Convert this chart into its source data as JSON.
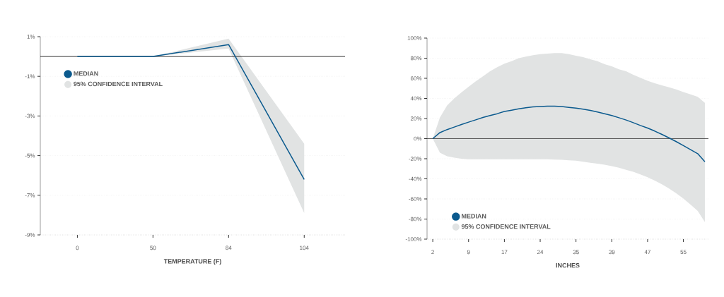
{
  "chart_data": [
    {
      "type": "line",
      "xlabel": "TEMPERATURE (F)",
      "categories": [
        "0",
        "50",
        "84",
        "104"
      ],
      "series": [
        {
          "name": "MEDIAN",
          "color": "#0b5a8e",
          "values": [
            0,
            0,
            0.6,
            -6.2
          ]
        },
        {
          "name": "95% CONFIDENCE INTERVAL",
          "color": "#e1e3e3",
          "values": [
            null,
            null,
            null,
            null
          ],
          "lower": [
            0,
            0,
            0.4,
            -7.9
          ],
          "upper": [
            0,
            0,
            0.9,
            -4.4
          ]
        }
      ],
      "ylim": [
        -9,
        1
      ],
      "yticks": [
        {
          "value": 1,
          "label": "1%"
        },
        {
          "value": -1,
          "label": "-1%"
        },
        {
          "value": -3,
          "label": "-3%"
        },
        {
          "value": -5,
          "label": "-5%"
        },
        {
          "value": -7,
          "label": "-7%"
        },
        {
          "value": -9,
          "label": "-9%"
        }
      ],
      "grid": "y",
      "legend": "top left",
      "ref_lines": [
        {
          "axis": "y",
          "value": 0,
          "color": "#000000"
        }
      ]
    },
    {
      "type": "line",
      "xlabel": "INCHES",
      "categories": [
        "2",
        null,
        null,
        null,
        null,
        "9",
        null,
        null,
        null,
        null,
        "17",
        null,
        null,
        null,
        null,
        "24",
        null,
        null,
        null,
        null,
        "35",
        null,
        null,
        null,
        null,
        "39",
        null,
        null,
        null,
        null,
        "47",
        null,
        null,
        null,
        null,
        "55",
        null,
        null,
        null
      ],
      "series": [
        {
          "name": "MEDIAN",
          "color": "#0b5a8e",
          "values": [
            0,
            6,
            9,
            11.5,
            14,
            16.4,
            18.7,
            21,
            23,
            24.8,
            27,
            28.3,
            29.7,
            30.7,
            31.6,
            32,
            32.3,
            32.3,
            31.9,
            31.1,
            30.4,
            29.3,
            28.1,
            26.5,
            24.8,
            23,
            20.8,
            18.5,
            15.9,
            13.1,
            10.5,
            7.5,
            4.2,
            0.7,
            -3,
            -7,
            -11,
            -15,
            -23
          ]
        },
        {
          "name": "95% CONFIDENCE INTERVAL",
          "color": "#e1e3e3",
          "values": [
            null,
            null,
            null,
            null,
            null,
            null,
            null,
            null,
            null,
            null,
            null,
            null,
            null,
            null,
            null,
            null,
            null,
            null,
            null,
            null,
            null,
            null,
            null,
            null,
            null,
            null,
            null,
            null,
            null,
            null,
            null,
            null,
            null,
            null,
            null,
            null,
            null,
            null,
            null
          ],
          "lower": [
            0,
            -14,
            -17.5,
            -19,
            -20,
            -20.6,
            -20.6,
            -20.6,
            -20.6,
            -20.6,
            -20.6,
            -20.6,
            -20.6,
            -20.6,
            -20.6,
            -20.6,
            -20.6,
            -20.8,
            -21,
            -21.5,
            -22,
            -23,
            -24,
            -25,
            -26,
            -27.4,
            -29,
            -31,
            -33,
            -35.6,
            -38.4,
            -41.7,
            -45.4,
            -49.6,
            -54.3,
            -59.7,
            -65.6,
            -72,
            -83
          ],
          "upper": [
            0,
            21,
            33,
            40,
            46,
            51.5,
            57,
            62,
            67,
            71,
            74.5,
            77,
            80,
            81.5,
            83,
            84,
            84.5,
            85,
            85,
            84,
            82.5,
            81,
            79,
            77,
            74,
            72,
            69,
            67,
            63.5,
            60.5,
            57.6,
            55,
            53,
            51,
            49,
            46.4,
            44,
            41.5,
            35.6
          ]
        }
      ],
      "ylim": [
        -100,
        100
      ],
      "yticks": [
        {
          "value": 100,
          "label": "100%"
        },
        {
          "value": 80,
          "label": "80%"
        },
        {
          "value": 60,
          "label": "60%"
        },
        {
          "value": 40,
          "label": "40%"
        },
        {
          "value": 20,
          "label": "20%"
        },
        {
          "value": 0,
          "label": "0%"
        },
        {
          "value": -20,
          "label": "-20%"
        },
        {
          "value": -40,
          "label": "-40%"
        },
        {
          "value": -60,
          "label": "-60%"
        },
        {
          "value": -80,
          "label": "-80%"
        },
        {
          "value": -100,
          "label": "-100%"
        }
      ],
      "grid": "y",
      "legend": "bottom left",
      "ref_lines": [
        {
          "axis": "y",
          "value": 0,
          "color": "#333333"
        }
      ]
    }
  ]
}
